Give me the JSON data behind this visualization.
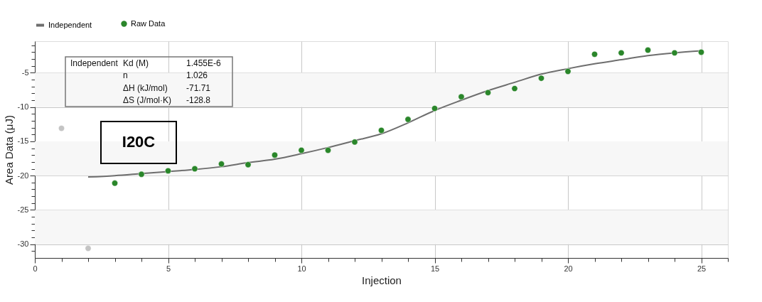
{
  "chart_data": {
    "type": "scatter",
    "xlabel": "Injection",
    "ylabel": "Area Data (μJ)",
    "xlim": [
      0,
      26
    ],
    "ylim": [
      -32,
      -0.4
    ],
    "xticks": [
      0,
      {
        "value": 1,
        "label": null
      },
      {
        "value": 2,
        "label": null
      },
      {
        "value": 3,
        "label": null
      },
      {
        "value": 4,
        "label": null
      },
      5,
      {
        "value": 6,
        "label": null
      },
      {
        "value": 7,
        "label": null
      },
      {
        "value": 8,
        "label": null
      },
      {
        "value": 9,
        "label": null
      },
      10,
      {
        "value": 11,
        "label": null
      },
      {
        "value": 12,
        "label": null
      },
      {
        "value": 13,
        "label": null
      },
      {
        "value": 14,
        "label": null
      },
      15,
      {
        "value": 16,
        "label": null
      },
      {
        "value": 17,
        "label": null
      },
      {
        "value": 18,
        "label": null
      },
      {
        "value": 19,
        "label": null
      },
      20,
      {
        "value": 21,
        "label": null
      },
      {
        "value": 22,
        "label": null
      },
      {
        "value": 23,
        "label": null
      },
      {
        "value": 24,
        "label": null
      },
      25,
      {
        "value": 26,
        "label": null
      }
    ],
    "yticks": [
      {
        "value": -31,
        "label": null
      },
      -30,
      {
        "value": -29,
        "label": null
      },
      {
        "value": -28,
        "label": null
      },
      {
        "value": -27,
        "label": null
      },
      {
        "value": -26,
        "label": null
      },
      -25,
      {
        "value": -24,
        "label": null
      },
      {
        "value": -23,
        "label": null
      },
      {
        "value": -22,
        "label": null
      },
      {
        "value": -21,
        "label": null
      },
      -20,
      {
        "value": -19,
        "label": null
      },
      {
        "value": -18,
        "label": null
      },
      {
        "value": -17,
        "label": null
      },
      {
        "value": -16,
        "label": null
      },
      -15,
      {
        "value": -14,
        "label": null
      },
      {
        "value": -13,
        "label": null
      },
      {
        "value": -12,
        "label": null
      },
      {
        "value": -11,
        "label": null
      },
      -10,
      {
        "value": -9,
        "label": null
      },
      {
        "value": -8,
        "label": null
      },
      {
        "value": -7,
        "label": null
      },
      {
        "value": -6,
        "label": null
      },
      -5,
      {
        "value": -4,
        "label": null
      },
      {
        "value": -3,
        "label": null
      },
      {
        "value": -2,
        "label": null
      },
      {
        "value": -1,
        "label": null
      }
    ],
    "grid": true,
    "legend": "top left",
    "bands": [
      {
        "axis": "y",
        "from": -10,
        "to": -5,
        "color": "#f7f7f7"
      },
      {
        "axis": "y",
        "from": -20,
        "to": -15,
        "color": "#f7f7f7"
      },
      {
        "axis": "y",
        "from": -30,
        "to": -25,
        "color": "#f7f7f7"
      }
    ],
    "series": [
      {
        "name": "Independent",
        "type": "line",
        "color": "#6e6e6e",
        "x": [
          2,
          3,
          4,
          5,
          6,
          7,
          8,
          9,
          10,
          11,
          12,
          13,
          14,
          15,
          16,
          17,
          18,
          19,
          20,
          21,
          22,
          23,
          24,
          25
        ],
        "values": [
          -20.2,
          -20.0,
          -19.7,
          -19.4,
          -19.1,
          -18.7,
          -18.1,
          -17.6,
          -16.8,
          -15.9,
          -14.9,
          -13.9,
          -12.3,
          -10.5,
          -9.0,
          -7.6,
          -6.4,
          -5.2,
          -4.4,
          -3.7,
          -3.1,
          -2.5,
          -2.1,
          -1.8
        ]
      },
      {
        "name": "Raw Data",
        "color": "#2a862a",
        "marker": "circle",
        "x": [
          3,
          4,
          5,
          6,
          7,
          8,
          9,
          10,
          11,
          12,
          13,
          14,
          15,
          16,
          17,
          18,
          19,
          20,
          21,
          22,
          23,
          24,
          25
        ],
        "values": [
          -21.1,
          -19.8,
          -19.3,
          -19.0,
          -18.3,
          -18.4,
          -17.0,
          -16.3,
          -16.3,
          -15.1,
          -13.4,
          -11.8,
          -10.2,
          -8.5,
          -7.9,
          -7.3,
          -5.8,
          -4.8,
          -2.3,
          -2.1,
          -1.7,
          -2.1,
          -2.0
        ]
      },
      {
        "color": "#c4c4c4",
        "marker": "circle",
        "x": [
          1,
          2
        ],
        "values": [
          -13.1,
          -30.6
        ]
      }
    ],
    "annotations": [
      "Independent",
      "Kd (M)",
      "1.455E-6",
      "n",
      "1.026",
      "ΔH (kJ/mol)",
      "-71.71",
      "ΔS (J/mol·K)",
      "-128.8",
      "I20C"
    ]
  }
}
